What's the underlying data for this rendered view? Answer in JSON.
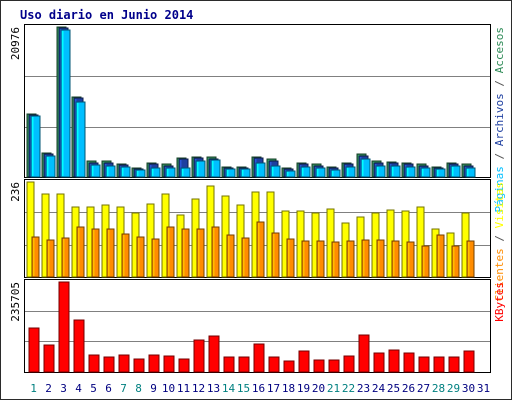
{
  "title": "Uso diario en Junio 2014",
  "colors": {
    "border": "#2b2b2b",
    "title": "#00008b",
    "accesos": "#2e8b57",
    "archivos": "#1e3fa0",
    "paginas": "#00bfff",
    "visitas": "#ffff00",
    "clientes": "#ff8c00",
    "kbytes": "#ff0000",
    "grid": "#808080",
    "weekday": "#000080",
    "weekend": "#008080"
  },
  "chart_data": [
    {
      "type": "bar",
      "name": "upper",
      "ymax_label": "20976",
      "ylim": [
        0,
        20976
      ],
      "categories": [
        "1",
        "2",
        "3",
        "4",
        "5",
        "6",
        "7",
        "8",
        "9",
        "10",
        "11",
        "12",
        "13",
        "14",
        "15",
        "16",
        "17",
        "18",
        "19",
        "20",
        "21",
        "22",
        "23",
        "24",
        "25",
        "26",
        "27",
        "28",
        "29",
        "30",
        "31"
      ],
      "series": [
        {
          "name": "Accesos",
          "values": [
            8800,
            3400,
            21000,
            11200,
            2200,
            2200,
            1850,
            1200,
            1950,
            1750,
            2700,
            2800,
            2750,
            1400,
            1400,
            2800,
            2450,
            1200,
            1950,
            1750,
            1400,
            1950,
            3200,
            2200,
            2150,
            1950,
            1750,
            1400,
            1950,
            1750,
            0
          ]
        },
        {
          "name": "Archivos",
          "values": [
            8700,
            3200,
            20900,
            11000,
            2000,
            2000,
            1650,
            1100,
            1750,
            1550,
            2500,
            2600,
            2550,
            1250,
            1250,
            2600,
            2250,
            1100,
            1750,
            1550,
            1250,
            1750,
            3000,
            2000,
            1950,
            1750,
            1550,
            1250,
            1750,
            1550,
            0
          ]
        },
        {
          "name": "Páginas",
          "values": [
            8500,
            3000,
            20500,
            10500,
            1700,
            1500,
            1400,
            1000,
            1300,
            1300,
            1300,
            2200,
            2400,
            1100,
            1100,
            2000,
            1600,
            900,
            1400,
            1200,
            1000,
            1400,
            2500,
            1600,
            1500,
            1400,
            1300,
            1100,
            1500,
            1300,
            0
          ]
        }
      ]
    },
    {
      "type": "bar",
      "name": "middle",
      "ymax_label": "236",
      "ylim": [
        0,
        236
      ],
      "categories": [
        "1",
        "2",
        "3",
        "4",
        "5",
        "6",
        "7",
        "8",
        "9",
        "10",
        "11",
        "12",
        "13",
        "14",
        "15",
        "16",
        "17",
        "18",
        "19",
        "20",
        "21",
        "22",
        "23",
        "24",
        "25",
        "26",
        "27",
        "28",
        "29",
        "30",
        "31"
      ],
      "series": [
        {
          "name": "Visitas",
          "values": [
            236,
            205,
            205,
            175,
            175,
            180,
            174,
            160,
            182,
            205,
            155,
            195,
            225,
            200,
            180,
            210,
            210,
            165,
            165,
            160,
            170,
            135,
            150,
            160,
            166,
            165,
            175,
            120,
            110,
            160,
            0
          ]
        },
        {
          "name": "Clientes",
          "values": [
            100,
            92,
            98,
            125,
            120,
            118,
            106,
            100,
            94,
            125,
            120,
            120,
            124,
            105,
            96,
            136,
            110,
            95,
            90,
            90,
            86,
            90,
            93,
            92,
            90,
            88,
            78,
            105,
            77,
            90,
            0
          ]
        }
      ]
    },
    {
      "type": "bar",
      "name": "lower",
      "ymax_label": "235705",
      "ylim": [
        0,
        235705
      ],
      "categories": [
        "1",
        "2",
        "3",
        "4",
        "5",
        "6",
        "7",
        "8",
        "9",
        "10",
        "11",
        "12",
        "13",
        "14",
        "15",
        "16",
        "17",
        "18",
        "19",
        "20",
        "21",
        "22",
        "23",
        "24",
        "25",
        "26",
        "27",
        "28",
        "29",
        "30",
        "31"
      ],
      "series": [
        {
          "name": "KBytes",
          "values": [
            115000,
            72000,
            235700,
            137000,
            45000,
            39000,
            45000,
            35000,
            45000,
            42000,
            33000,
            83000,
            94000,
            39000,
            39000,
            74000,
            38000,
            28000,
            54000,
            31000,
            31000,
            43000,
            96000,
            50000,
            58000,
            50000,
            40000,
            40000,
            39000,
            54000,
            0
          ]
        }
      ]
    }
  ],
  "x_labels": [
    {
      "text": "1",
      "weekend": true
    },
    {
      "text": "2",
      "weekend": false
    },
    {
      "text": "3",
      "weekend": false
    },
    {
      "text": "4",
      "weekend": false
    },
    {
      "text": "5",
      "weekend": false
    },
    {
      "text": "6",
      "weekend": false
    },
    {
      "text": "7",
      "weekend": true
    },
    {
      "text": "8",
      "weekend": true
    },
    {
      "text": "9",
      "weekend": false
    },
    {
      "text": "10",
      "weekend": false
    },
    {
      "text": "11",
      "weekend": false
    },
    {
      "text": "12",
      "weekend": false
    },
    {
      "text": "13",
      "weekend": false
    },
    {
      "text": "14",
      "weekend": true
    },
    {
      "text": "15",
      "weekend": true
    },
    {
      "text": "16",
      "weekend": false
    },
    {
      "text": "17",
      "weekend": false
    },
    {
      "text": "18",
      "weekend": false
    },
    {
      "text": "19",
      "weekend": false
    },
    {
      "text": "20",
      "weekend": false
    },
    {
      "text": "21",
      "weekend": true
    },
    {
      "text": "22",
      "weekend": true
    },
    {
      "text": "23",
      "weekend": false
    },
    {
      "text": "24",
      "weekend": false
    },
    {
      "text": "25",
      "weekend": false
    },
    {
      "text": "26",
      "weekend": false
    },
    {
      "text": "27",
      "weekend": false
    },
    {
      "text": "28",
      "weekend": true
    },
    {
      "text": "29",
      "weekend": true
    },
    {
      "text": "30",
      "weekend": false
    },
    {
      "text": "31",
      "weekend": false
    }
  ],
  "legend": {
    "upper": [
      {
        "text": "Páginas",
        "key": "paginas"
      },
      {
        "text": " / ",
        "key": "grey"
      },
      {
        "text": "Archivos",
        "key": "archivos"
      },
      {
        "text": " / ",
        "key": "grey"
      },
      {
        "text": "Accesos",
        "key": "accesos"
      }
    ],
    "middle": [
      {
        "text": "Clientes",
        "key": "clientes"
      },
      {
        "text": " / ",
        "key": "grey"
      },
      {
        "text": "Visitas",
        "key": "visitas"
      }
    ],
    "lower": [
      {
        "text": "KBytes",
        "key": "kbytes"
      }
    ]
  }
}
